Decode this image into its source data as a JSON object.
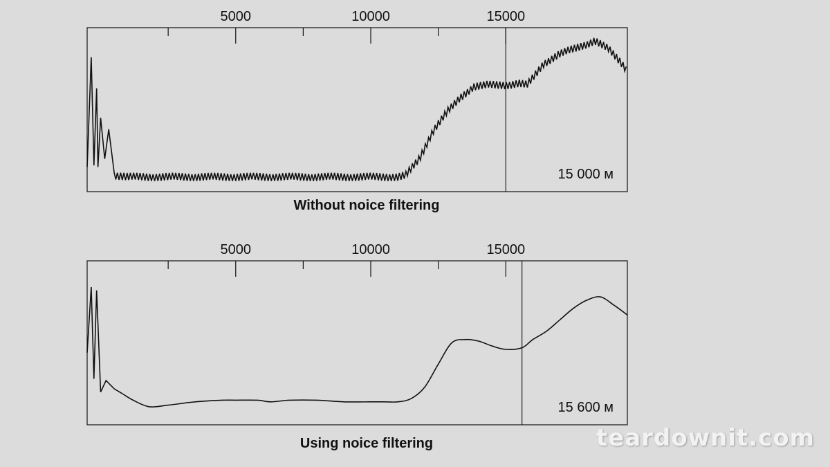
{
  "colors": {
    "background": "#dcdcdc",
    "line": "#111111",
    "frame": "#222222"
  },
  "watermark": "teardownit.com",
  "chart_data": [
    {
      "type": "line",
      "caption": "Without noice filtering",
      "distance_label": "15 000 м",
      "xlim": [
        -500,
        19500
      ],
      "ylim": [
        0,
        100
      ],
      "major_ticks": [
        5000,
        10000,
        15000
      ],
      "minor_ticks": [
        2500,
        7500,
        12500
      ],
      "tick_labels": [
        "5000",
        "10000",
        "15000"
      ],
      "marker_x": 15000,
      "grid": false,
      "series": [
        {
          "noise_amplitude": 2.5,
          "x": [
            -500,
            -350,
            -250,
            -150,
            -100,
            0,
            150,
            300,
            500,
            1000,
            2000,
            3000,
            4000,
            5000,
            6000,
            7000,
            8000,
            9000,
            10000,
            11000,
            11300,
            11800,
            12300,
            12800,
            13300,
            13800,
            14300,
            15000,
            15500,
            15800,
            16400,
            17000,
            17500,
            18000,
            18300,
            18800,
            19200,
            19500
          ],
          "y": [
            15,
            82,
            16,
            63,
            15,
            45,
            20,
            38,
            10,
            9,
            9,
            9,
            9,
            9,
            9,
            9,
            9,
            9,
            9,
            9,
            10,
            20,
            37,
            48,
            57,
            64,
            65,
            65,
            66,
            65,
            78,
            84,
            87,
            90,
            92,
            87,
            80,
            74
          ]
        }
      ]
    },
    {
      "type": "line",
      "caption": "Using noice filtering",
      "distance_label": "15 600 м",
      "xlim": [
        -500,
        19500
      ],
      "ylim": [
        0,
        100
      ],
      "major_ticks": [
        5000,
        10000,
        15000
      ],
      "minor_ticks": [
        2500,
        7500,
        12500
      ],
      "tick_labels": [
        "5000",
        "10000",
        "15000"
      ],
      "marker_x": 15600,
      "grid": false,
      "series": [
        {
          "noise_amplitude": 0,
          "x": [
            -500,
            -350,
            -250,
            -150,
            0,
            200,
            500,
            800,
            1200,
            1800,
            2500,
            3500,
            4500,
            5000,
            5800,
            6300,
            7000,
            8000,
            9000,
            10000,
            10500,
            11000,
            11500,
            12000,
            12500,
            13000,
            13500,
            14000,
            14500,
            15000,
            15600,
            16000,
            16500,
            17000,
            17500,
            18000,
            18500,
            19000,
            19500
          ],
          "y": [
            44,
            84,
            28,
            82,
            20,
            27,
            22,
            19,
            15,
            11,
            12,
            14,
            15,
            15,
            15,
            14,
            15,
            15,
            14,
            14,
            14,
            14,
            16,
            23,
            37,
            50,
            52,
            51,
            48,
            46,
            47,
            52,
            57,
            64,
            71,
            76,
            78,
            73,
            67
          ]
        }
      ]
    }
  ]
}
